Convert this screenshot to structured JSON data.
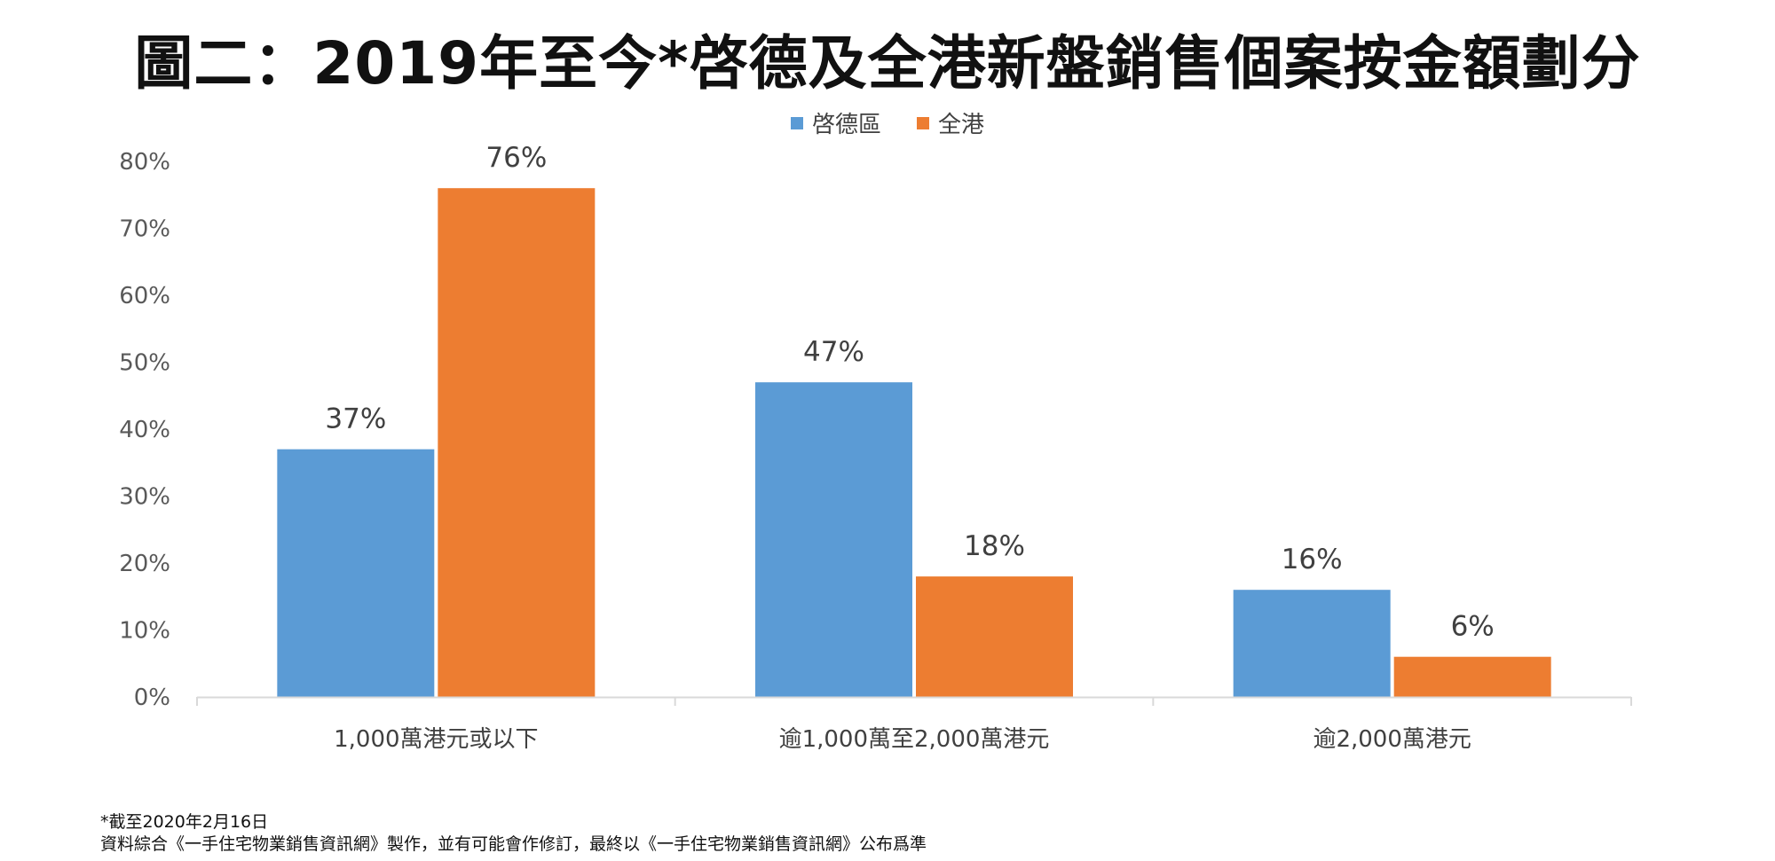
{
  "title": "圖二：2019年至今*啓德及全港新盤銷售個案按金額劃分",
  "chart_data": {
    "type": "bar",
    "categories": [
      "1,000萬港元或以下",
      "逾1,000萬至2,000萬港元",
      "逾2,000萬港元"
    ],
    "series": [
      {
        "name": "啓德區",
        "color": "#5B9BD5",
        "values": [
          37,
          47,
          16
        ],
        "labels": [
          "37%",
          "47%",
          "16%"
        ]
      },
      {
        "name": "全港",
        "color": "#ED7D31",
        "values": [
          76,
          18,
          6
        ],
        "labels": [
          "76%",
          "18%",
          "6%"
        ]
      }
    ],
    "ylim": [
      0,
      80
    ],
    "yticks": [
      "0%",
      "10%",
      "20%",
      "30%",
      "40%",
      "50%",
      "60%",
      "70%",
      "80%"
    ],
    "legend_position": "top-center",
    "grid": false
  },
  "footnote": {
    "line1": "*截至2020年2月16日",
    "line2": "資料綜合《一手住宅物業銷售資訊網》製作，並有可能會作修訂，最終以《一手住宅物業銷售資訊網》公布爲準"
  }
}
